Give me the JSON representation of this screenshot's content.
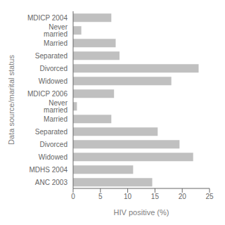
{
  "chart_data": {
    "type": "bar",
    "orientation": "horizontal",
    "categories": [
      "MDICP 2004",
      "Never married",
      "Married",
      "Separated",
      "Divorced",
      "Widowed",
      "MDICP 2006",
      "Never married",
      "Married",
      "Separated",
      "Divorced",
      "Widowed",
      "MDHS 2004",
      "ANC 2003"
    ],
    "values": [
      7.0,
      1.5,
      7.8,
      8.5,
      23.0,
      18.0,
      7.5,
      0.7,
      7.0,
      15.5,
      19.5,
      22.0,
      11.0,
      14.5
    ],
    "color": "#c0c0c0",
    "xlabel": "HIV positive (%)",
    "ylabel": "Data source/marital status",
    "xlim": [
      0,
      25
    ],
    "xticks": [
      0,
      5,
      10,
      15,
      20,
      25
    ]
  }
}
